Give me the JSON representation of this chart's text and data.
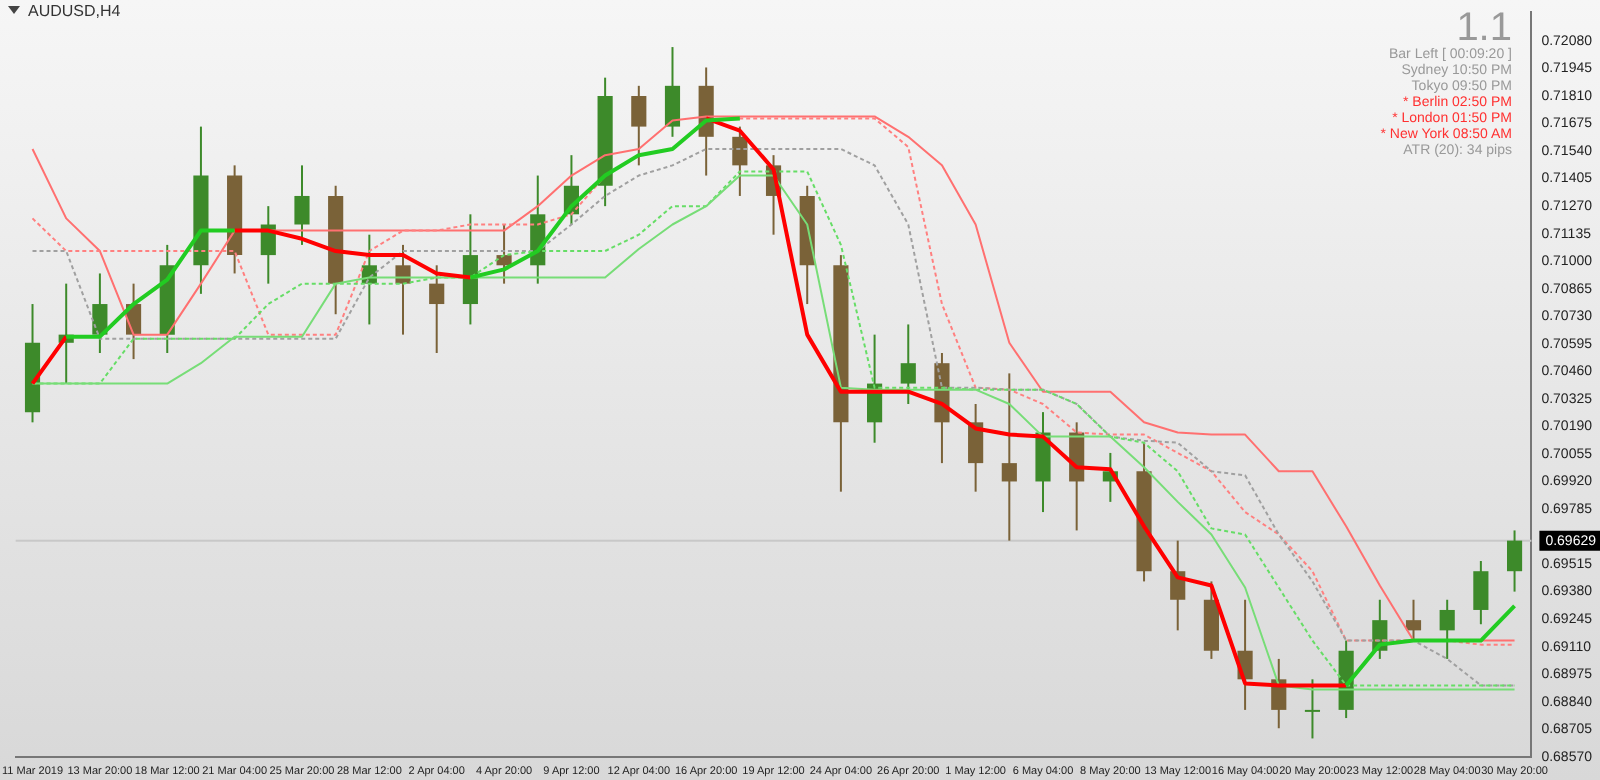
{
  "chart_data": {
    "type": "candlestick",
    "title": "AUDUSD,H4",
    "categories": [
      "11 Mar 2019",
      null,
      "13 Mar 20:00",
      null,
      "18 Mar 12:00",
      null,
      "21 Mar 04:00",
      null,
      "25 Mar 20:00",
      null,
      "28 Mar 12:00",
      null,
      "2 Apr 04:00",
      null,
      "4 Apr 20:00",
      null,
      "9 Apr 12:00",
      null,
      "12 Apr 04:00",
      null,
      "16 Apr 20:00",
      null,
      "19 Apr 12:00",
      null,
      "24 Apr 04:00",
      null,
      "26 Apr 20:00",
      null,
      "1 May 12:00",
      null,
      "6 May 04:00",
      null,
      "8 May 20:00",
      null,
      "13 May 12:00",
      null,
      "16 May 04:00",
      null,
      "20 May 20:00",
      null,
      "23 May 12:00",
      null,
      "28 May 04:00",
      null,
      "30 May 20:00"
    ],
    "ohlc": [
      [
        0.7026,
        0.7079,
        0.7021,
        0.706
      ],
      [
        0.706,
        0.7089,
        0.704,
        0.7064
      ],
      [
        0.7064,
        0.7094,
        0.7055,
        0.7079
      ],
      [
        0.7079,
        0.7089,
        0.7052,
        0.7064
      ],
      [
        0.7064,
        0.7108,
        0.7055,
        0.7098
      ],
      [
        0.7098,
        0.7166,
        0.7084,
        0.7142
      ],
      [
        0.7142,
        0.7147,
        0.7094,
        0.7103
      ],
      [
        0.7103,
        0.7127,
        0.7089,
        0.7118
      ],
      [
        0.7118,
        0.7147,
        0.7108,
        0.7132
      ],
      [
        0.7132,
        0.7137,
        0.7074,
        0.7089
      ],
      [
        0.7089,
        0.7113,
        0.7069,
        0.7098
      ],
      [
        0.7098,
        0.7108,
        0.7064,
        0.7089
      ],
      [
        0.7089,
        0.7098,
        0.7055,
        0.7079
      ],
      [
        0.7079,
        0.7123,
        0.7069,
        0.7103
      ],
      [
        0.7103,
        0.7118,
        0.7089,
        0.7098
      ],
      [
        0.7098,
        0.7142,
        0.7089,
        0.7123
      ],
      [
        0.7123,
        0.7152,
        0.7118,
        0.7137
      ],
      [
        0.7137,
        0.719,
        0.7127,
        0.7181
      ],
      [
        0.7181,
        0.7186,
        0.7147,
        0.7166
      ],
      [
        0.7166,
        0.7205,
        0.7161,
        0.7186
      ],
      [
        0.7186,
        0.7195,
        0.7142,
        0.7161
      ],
      [
        0.7161,
        0.7166,
        0.7132,
        0.7147
      ],
      [
        0.7147,
        0.7152,
        0.7113,
        0.7132
      ],
      [
        0.7132,
        0.7137,
        0.7079,
        0.7098
      ],
      [
        0.7098,
        0.7103,
        0.6987,
        0.7021
      ],
      [
        0.7021,
        0.7064,
        0.7011,
        0.704
      ],
      [
        0.704,
        0.7069,
        0.703,
        0.705
      ],
      [
        0.705,
        0.7055,
        0.7001,
        0.7021
      ],
      [
        0.7021,
        0.703,
        0.6987,
        0.7001
      ],
      [
        0.7001,
        0.7045,
        0.6963,
        0.6992
      ],
      [
        0.6992,
        0.7026,
        0.6977,
        0.7016
      ],
      [
        0.7016,
        0.7021,
        0.6968,
        0.6992
      ],
      [
        0.6992,
        0.7006,
        0.6982,
        0.6997
      ],
      [
        0.6997,
        0.7011,
        0.6943,
        0.6948
      ],
      [
        0.6948,
        0.6963,
        0.6919,
        0.6934
      ],
      [
        0.6934,
        0.6943,
        0.6905,
        0.6909
      ],
      [
        0.6909,
        0.6934,
        0.688,
        0.6895
      ],
      [
        0.6895,
        0.6905,
        0.6871,
        0.688
      ],
      [
        0.688,
        0.6895,
        0.6866,
        0.688
      ],
      [
        0.688,
        0.6914,
        0.6876,
        0.6909
      ],
      [
        0.6909,
        0.6934,
        0.6905,
        0.6924
      ],
      [
        0.6924,
        0.6934,
        0.6914,
        0.6919
      ],
      [
        0.6919,
        0.6934,
        0.6905,
        0.6929
      ],
      [
        0.6929,
        0.6953,
        0.6922,
        0.6948
      ],
      [
        0.6948,
        0.6968,
        0.6938,
        0.6963
      ]
    ],
    "series": [
      {
        "type": "line",
        "color": "#ff7070",
        "line_style": "solid",
        "values": [
          0.7155,
          0.7121,
          0.7105,
          0.7064,
          0.7064,
          0.7089,
          0.7115,
          0.7115,
          0.7115,
          0.7115,
          0.7115,
          0.7115,
          0.7115,
          0.7115,
          0.7115,
          0.7127,
          0.7142,
          0.7152,
          0.7155,
          0.7169,
          0.7171,
          0.7171,
          0.7171,
          0.7171,
          0.7171,
          0.7171,
          0.7161,
          0.7147,
          0.7118,
          0.706,
          0.7036,
          0.7036,
          0.7036,
          0.7021,
          0.7016,
          0.7015,
          0.7015,
          0.6997,
          0.6997,
          0.697,
          0.6941,
          0.6914,
          0.6914,
          0.6914,
          0.6914
        ]
      },
      {
        "type": "line",
        "color": "#ff8080",
        "line_style": "dotted",
        "values": [
          0.7121,
          0.7105,
          0.7105,
          0.7105,
          0.7105,
          0.7105,
          0.7105,
          0.7064,
          0.7064,
          0.7064,
          0.7105,
          0.7115,
          0.7115,
          0.7118,
          0.7118,
          0.7118,
          0.7123,
          0.7142,
          0.7152,
          0.7155,
          0.7169,
          0.717,
          0.717,
          0.717,
          0.717,
          0.717,
          0.7156,
          0.7079,
          0.7038,
          0.7037,
          0.703,
          0.7016,
          0.7015,
          0.7015,
          0.7006,
          0.6997,
          0.6977,
          0.6966,
          0.6948,
          0.6914,
          0.6914,
          0.6914,
          0.6914,
          0.6912,
          0.6912
        ]
      },
      {
        "type": "line",
        "color": "#a0a0a0",
        "line_style": "dotted",
        "values": [
          0.7105,
          0.7105,
          0.7062,
          0.7062,
          0.7062,
          0.7062,
          0.7062,
          0.7062,
          0.7062,
          0.7062,
          0.7092,
          0.7105,
          0.7105,
          0.7105,
          0.7105,
          0.7105,
          0.7118,
          0.7132,
          0.7142,
          0.7147,
          0.7155,
          0.7155,
          0.7155,
          0.7155,
          0.7155,
          0.7147,
          0.7118,
          0.7038,
          0.7038,
          0.7037,
          0.7037,
          0.703,
          0.7014,
          0.7012,
          0.7011,
          0.6997,
          0.6995,
          0.6966,
          0.6943,
          0.6914,
          0.6914,
          0.6914,
          0.6905,
          0.6892,
          0.6892
        ]
      },
      {
        "type": "line",
        "color": "#66dd66",
        "line_style": "dotted",
        "values": [
          0.704,
          0.704,
          0.704,
          0.7062,
          0.7062,
          0.7062,
          0.7062,
          0.7079,
          0.7089,
          0.7089,
          0.7089,
          0.7089,
          0.7092,
          0.7092,
          0.7103,
          0.7105,
          0.7105,
          0.7105,
          0.7113,
          0.7127,
          0.7127,
          0.7144,
          0.7144,
          0.7144,
          0.7108,
          0.7038,
          0.7038,
          0.7038,
          0.7037,
          0.7037,
          0.7037,
          0.703,
          0.7014,
          0.7011,
          0.6997,
          0.6969,
          0.6966,
          0.694,
          0.6914,
          0.6892,
          0.6892,
          0.6892,
          0.6892,
          0.6892,
          0.6892
        ]
      },
      {
        "type": "line",
        "color": "#77dd77",
        "line_style": "solid",
        "values": [
          0.704,
          0.704,
          0.704,
          0.704,
          0.704,
          0.705,
          0.7063,
          0.7063,
          0.7063,
          0.7089,
          0.7092,
          0.7092,
          0.7092,
          0.7092,
          0.7092,
          0.7092,
          0.7092,
          0.7092,
          0.7106,
          0.7118,
          0.7127,
          0.7142,
          0.7142,
          0.7118,
          0.7038,
          0.7037,
          0.7037,
          0.7037,
          0.7037,
          0.703,
          0.7014,
          0.7014,
          0.7014,
          0.6999,
          0.6982,
          0.6966,
          0.694,
          0.6892,
          0.689,
          0.689,
          0.689,
          0.689,
          0.689,
          0.689,
          0.689
        ]
      },
      {
        "type": "line",
        "color": "#ff0000",
        "line_style": "solid",
        "values": [
          0.704,
          0.7063,
          null,
          null,
          null,
          null,
          0.7115,
          0.7115,
          0.7111,
          0.7105,
          0.7103,
          0.7103,
          0.7094,
          0.7092,
          null,
          null,
          null,
          null,
          null,
          null,
          0.717,
          0.7164,
          0.7145,
          0.7064,
          0.7036,
          0.7036,
          0.7036,
          0.703,
          0.7018,
          0.7015,
          0.7014,
          0.6999,
          0.6998,
          0.697,
          0.6945,
          0.6941,
          0.6893,
          0.6892,
          0.6892,
          0.6892,
          null,
          null,
          null,
          null,
          null
        ]
      },
      {
        "type": "line",
        "color": "#22cc22",
        "line_style": "solid",
        "values": [
          null,
          0.7063,
          0.7063,
          0.7079,
          0.7091,
          0.7115,
          0.7115,
          null,
          null,
          null,
          null,
          null,
          null,
          0.7092,
          0.7096,
          0.7105,
          0.7127,
          0.7142,
          0.7152,
          0.7155,
          0.7169,
          0.717,
          null,
          null,
          null,
          null,
          null,
          null,
          null,
          null,
          null,
          null,
          null,
          null,
          null,
          null,
          null,
          null,
          null,
          0.6892,
          0.6912,
          0.6914,
          0.6914,
          0.6914,
          0.6931
        ]
      }
    ],
    "ylim": [
      0.6857,
      0.7222
    ],
    "yticks": [
      {
        "value": 0.6857,
        "label": "0.68570"
      },
      {
        "value": 0.68705,
        "label": "0.68705"
      },
      {
        "value": 0.6884,
        "label": "0.68840"
      },
      {
        "value": 0.68975,
        "label": "0.68975"
      },
      {
        "value": 0.6911,
        "label": "0.69110"
      },
      {
        "value": 0.69245,
        "label": "0.69245"
      },
      {
        "value": 0.6938,
        "label": "0.69380"
      },
      {
        "value": 0.69515,
        "label": "0.69515"
      },
      {
        "value": 0.69785,
        "label": "0.69785"
      },
      {
        "value": 0.6992,
        "label": "0.69920"
      },
      {
        "value": 0.70055,
        "label": "0.70055"
      },
      {
        "value": 0.7019,
        "label": "0.70190"
      },
      {
        "value": 0.70325,
        "label": "0.70325"
      },
      {
        "value": 0.7046,
        "label": "0.70460"
      },
      {
        "value": 0.70595,
        "label": "0.70595"
      },
      {
        "value": 0.7073,
        "label": "0.70730"
      },
      {
        "value": 0.70865,
        "label": "0.70865"
      },
      {
        "value": 0.71,
        "label": "0.71000"
      },
      {
        "value": 0.71135,
        "label": "0.71135"
      },
      {
        "value": 0.7127,
        "label": "0.71270"
      },
      {
        "value": 0.71405,
        "label": "0.71405"
      },
      {
        "value": 0.7154,
        "label": "0.71540"
      },
      {
        "value": 0.71675,
        "label": "0.71675"
      },
      {
        "value": 0.7181,
        "label": "0.71810"
      },
      {
        "value": 0.71945,
        "label": "0.71945"
      },
      {
        "value": 0.7208,
        "label": "0.72080"
      }
    ],
    "ref_lines": [
      {
        "axis": "y",
        "value": 0.69629,
        "label": "0.69629",
        "color": "#c8c8c8"
      }
    ],
    "annotations": [
      "1.1",
      "Bar Left   [ 00:09:20 ]",
      "Sydney   10:50 PM",
      "Tokyo   09:50 PM",
      "* Berlin   02:50 PM",
      "* London   01:50 PM",
      "* New York   08:50 AM",
      "ATR (20): 34 pips"
    ],
    "grid": false,
    "legend": false
  }
}
